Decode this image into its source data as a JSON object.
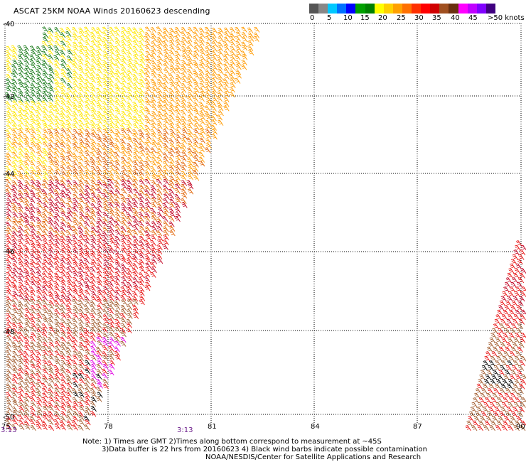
{
  "title": "ASCAT 25KM NOAA Winds 20160623 descending",
  "legend": {
    "colors": [
      "#555555",
      "#888888",
      "#00c8ff",
      "#0070ff",
      "#0000ff",
      "#00a000",
      "#008000",
      "#ffff00",
      "#ffd000",
      "#ffa000",
      "#ff7000",
      "#ff3000",
      "#ff0000",
      "#d00000",
      "#a05020",
      "#6a3010",
      "#ff00ff",
      "#c000ff",
      "#8000ff",
      "#400080"
    ],
    "labels": [
      "0",
      "5",
      "10",
      "15",
      "20",
      "25",
      "30",
      "35",
      "40",
      "45",
      ">50 knots"
    ]
  },
  "map": {
    "lat_labels": [
      "-40",
      "-42",
      "-44",
      "-46",
      "-48",
      "-50"
    ],
    "lon_labels": [
      "75",
      "78",
      "81",
      "84",
      "87",
      "90"
    ],
    "barb_colors": {
      "green": "#1a7a1a",
      "yellow": "#ffe600",
      "orange": "#ff9a00",
      "dark_orange": "#e06000",
      "red": "#e81010",
      "crimson": "#c00020",
      "brown": "#a05a2c",
      "magenta": "#e000e0",
      "black": "#000000"
    }
  },
  "times": {
    "left": "3:13",
    "center": "3:13"
  },
  "notes": {
    "line1": "Note: 1) Times are GMT 2)Times along bottom correspond to measurement at ~45S",
    "line2": "3)Data buffer is 22 hrs from 20160623 4) Black wind barbs indicate possible contamination",
    "line3": "NOAA/NESDIS/Center for Satellite Applications and Research"
  }
}
